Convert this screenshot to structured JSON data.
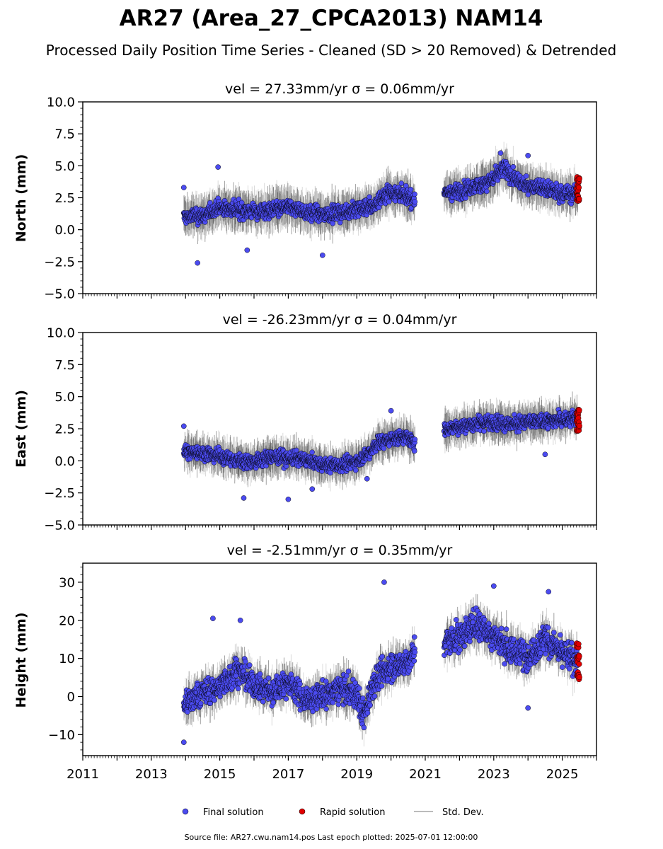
{
  "figure": {
    "title": "AR27 (Area_27_CPCA2013) NAM14",
    "subtitle": "Processed Daily Position Time Series - Cleaned (SD > 20 Removed) & Detrended",
    "footer": "Source file: AR27.cwu.nam14.pos  Last epoch plotted: 2025-07-01 12:00:00",
    "colors": {
      "final": "#4b4bf0",
      "rapid": "#e00000",
      "stddev": "#bbbbbb",
      "edge": "#000000"
    }
  },
  "legend": {
    "placement": "bottom-center",
    "items": [
      {
        "label": "Final solution",
        "color": "#4b4bf0",
        "marker": "dot"
      },
      {
        "label": "Rapid solution",
        "color": "#e00000",
        "marker": "dot"
      },
      {
        "label": "Std. Dev.",
        "color": "#bbbbbb",
        "marker": "line"
      }
    ]
  },
  "chart_data": [
    {
      "type": "scatter",
      "title": "vel = 27.33mm/yr   σ = 0.06mm/yr",
      "ylabel": "North (mm)",
      "xlim": [
        2011.0,
        2026.0
      ],
      "ylim": [
        -5.0,
        10.0
      ],
      "yticks": [
        -5.0,
        -2.5,
        0.0,
        2.5,
        5.0,
        7.5,
        10.0
      ],
      "ytick_labels": [
        "−5.0",
        "−2.5",
        "0.0",
        "2.5",
        "5.0",
        "7.5",
        "10.0"
      ],
      "final_segments": [
        {
          "x": [
            2013.95,
            2014.5,
            2014.95,
            2015.5,
            2016.0,
            2016.5,
            2017.0,
            2017.5,
            2018.0,
            2018.5,
            2019.0,
            2019.5,
            2019.9,
            2020.3,
            2020.7
          ],
          "y": [
            1.0,
            1.1,
            1.7,
            1.6,
            1.4,
            1.5,
            1.8,
            1.4,
            1.2,
            1.3,
            1.6,
            1.9,
            3.0,
            2.8,
            2.3
          ],
          "spread": 0.8
        },
        {
          "x": [
            2021.55,
            2022.0,
            2022.5,
            2023.0,
            2023.3,
            2023.7,
            2024.0,
            2024.5,
            2025.0,
            2025.45
          ],
          "y": [
            2.9,
            3.0,
            3.4,
            4.0,
            4.8,
            3.7,
            3.5,
            3.3,
            2.8,
            2.8
          ],
          "spread": 0.8
        }
      ],
      "outliers": [
        {
          "x": 2013.95,
          "y": 3.3
        },
        {
          "x": 2014.35,
          "y": -2.6
        },
        {
          "x": 2014.95,
          "y": 4.9
        },
        {
          "x": 2015.8,
          "y": -1.6
        },
        {
          "x": 2018.0,
          "y": -2.0
        },
        {
          "x": 2023.2,
          "y": 6.0
        },
        {
          "x": 2024.0,
          "y": 5.8
        }
      ],
      "rapid": {
        "x_start": 2025.42,
        "x_end": 2025.5,
        "y_min": 2.2,
        "y_max": 4.2
      },
      "sd_size": 1.1
    },
    {
      "type": "scatter",
      "title": "vel = -26.23mm/yr   σ = 0.04mm/yr",
      "ylabel": "East (mm)",
      "xlim": [
        2011.0,
        2026.0
      ],
      "ylim": [
        -5.0,
        10.0
      ],
      "yticks": [
        -5.0,
        -2.5,
        0.0,
        2.5,
        5.0,
        7.5,
        10.0
      ],
      "ytick_labels": [
        "−5.0",
        "−2.5",
        "0.0",
        "2.5",
        "5.0",
        "7.5",
        "10.0"
      ],
      "final_segments": [
        {
          "x": [
            2013.95,
            2014.5,
            2015.0,
            2015.5,
            2016.0,
            2016.5,
            2017.0,
            2017.5,
            2018.0,
            2018.5,
            2019.0,
            2019.3,
            2019.6,
            2020.0,
            2020.4,
            2020.7
          ],
          "y": [
            0.7,
            0.6,
            0.4,
            0.0,
            -0.1,
            0.3,
            0.2,
            0.1,
            -0.3,
            -0.4,
            0.0,
            0.5,
            1.4,
            1.7,
            1.9,
            1.4
          ],
          "spread": 0.7
        },
        {
          "x": [
            2021.55,
            2022.0,
            2022.5,
            2023.0,
            2023.5,
            2024.0,
            2024.5,
            2025.0,
            2025.45
          ],
          "y": [
            2.5,
            2.7,
            2.9,
            3.0,
            2.9,
            3.0,
            3.1,
            3.2,
            3.3
          ],
          "spread": 0.75
        }
      ],
      "outliers": [
        {
          "x": 2013.95,
          "y": 2.7
        },
        {
          "x": 2015.7,
          "y": -2.9
        },
        {
          "x": 2017.0,
          "y": -3.0
        },
        {
          "x": 2017.7,
          "y": -2.2
        },
        {
          "x": 2019.3,
          "y": -1.4
        },
        {
          "x": 2020.0,
          "y": 3.9
        },
        {
          "x": 2024.5,
          "y": 0.5
        }
      ],
      "rapid": {
        "x_start": 2025.42,
        "x_end": 2025.5,
        "y_min": 2.3,
        "y_max": 4.0
      },
      "sd_size": 1.0
    },
    {
      "type": "scatter",
      "title": "vel = -2.51mm/yr   σ = 0.35mm/yr",
      "ylabel": "Height (mm)",
      "xlim": [
        2011.0,
        2026.0
      ],
      "ylim": [
        -15.5,
        35.0
      ],
      "yticks": [
        -10,
        0,
        10,
        20,
        30
      ],
      "ytick_labels": [
        "−10",
        "0",
        "10",
        "20",
        "30"
      ],
      "final_segments": [
        {
          "x": [
            2013.95,
            2014.5,
            2015.0,
            2015.5,
            2016.0,
            2016.5,
            2017.0,
            2017.5,
            2018.0,
            2018.5,
            2019.0,
            2019.2,
            2019.5,
            2020.0,
            2020.5,
            2020.7
          ],
          "y": [
            -2.0,
            1.0,
            2.5,
            7.0,
            3.0,
            1.0,
            4.0,
            -1.0,
            0.0,
            2.0,
            1.0,
            -5.0,
            4.0,
            8.0,
            9.0,
            12.0
          ],
          "spread": 4.5
        },
        {
          "x": [
            2021.55,
            2022.0,
            2022.5,
            2023.0,
            2023.5,
            2024.0,
            2024.5,
            2025.0,
            2025.45
          ],
          "y": [
            14.0,
            16.0,
            19.0,
            16.0,
            12.0,
            11.0,
            15.0,
            11.0,
            10.0
          ],
          "spread": 5.0
        }
      ],
      "outliers": [
        {
          "x": 2014.8,
          "y": 20.5
        },
        {
          "x": 2015.6,
          "y": 20.0
        },
        {
          "x": 2019.8,
          "y": 30.0
        },
        {
          "x": 2023.0,
          "y": 29.0
        },
        {
          "x": 2024.0,
          "y": -3.0
        },
        {
          "x": 2024.6,
          "y": 27.5
        },
        {
          "x": 2013.95,
          "y": -12.0
        }
      ],
      "rapid": {
        "x_start": 2025.42,
        "x_end": 2025.5,
        "y_min": 4.5,
        "y_max": 14.0
      },
      "sd_size": 3.5
    }
  ],
  "xaxis": {
    "ticks": [
      2011,
      2013,
      2015,
      2017,
      2019,
      2021,
      2023,
      2025
    ],
    "tick_labels": [
      "2011",
      "2013",
      "2015",
      "2017",
      "2019",
      "2021",
      "2023",
      "2025"
    ]
  }
}
